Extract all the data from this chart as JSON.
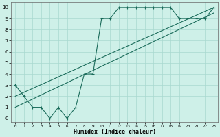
{
  "title": "",
  "xlabel": "Humidex (Indice chaleur)",
  "bg_color": "#cef0e8",
  "line_color": "#1a6b5a",
  "grid_color": "#a8d8cf",
  "xlim": [
    -0.5,
    23.5
  ],
  "ylim": [
    -0.3,
    10.5
  ],
  "xticks": [
    0,
    1,
    2,
    3,
    4,
    5,
    6,
    7,
    8,
    9,
    10,
    11,
    12,
    13,
    14,
    15,
    16,
    17,
    18,
    19,
    20,
    21,
    22,
    23
  ],
  "yticks": [
    0,
    1,
    2,
    3,
    4,
    5,
    6,
    7,
    8,
    9,
    10
  ],
  "data_x": [
    0,
    1,
    2,
    3,
    4,
    5,
    6,
    7,
    8,
    9,
    10,
    11,
    12,
    13,
    14,
    15,
    16,
    17,
    18,
    19,
    20,
    21,
    22,
    23
  ],
  "data_y": [
    3,
    2,
    1,
    1,
    0,
    1,
    0,
    1,
    4,
    4,
    9,
    9,
    10,
    10,
    10,
    10,
    10,
    10,
    10,
    9,
    9,
    9,
    9,
    10
  ],
  "line1_x": [
    0,
    23
  ],
  "line1_y": [
    1.0,
    9.5
  ],
  "line2_x": [
    0,
    23
  ],
  "line2_y": [
    2.0,
    10.0
  ]
}
